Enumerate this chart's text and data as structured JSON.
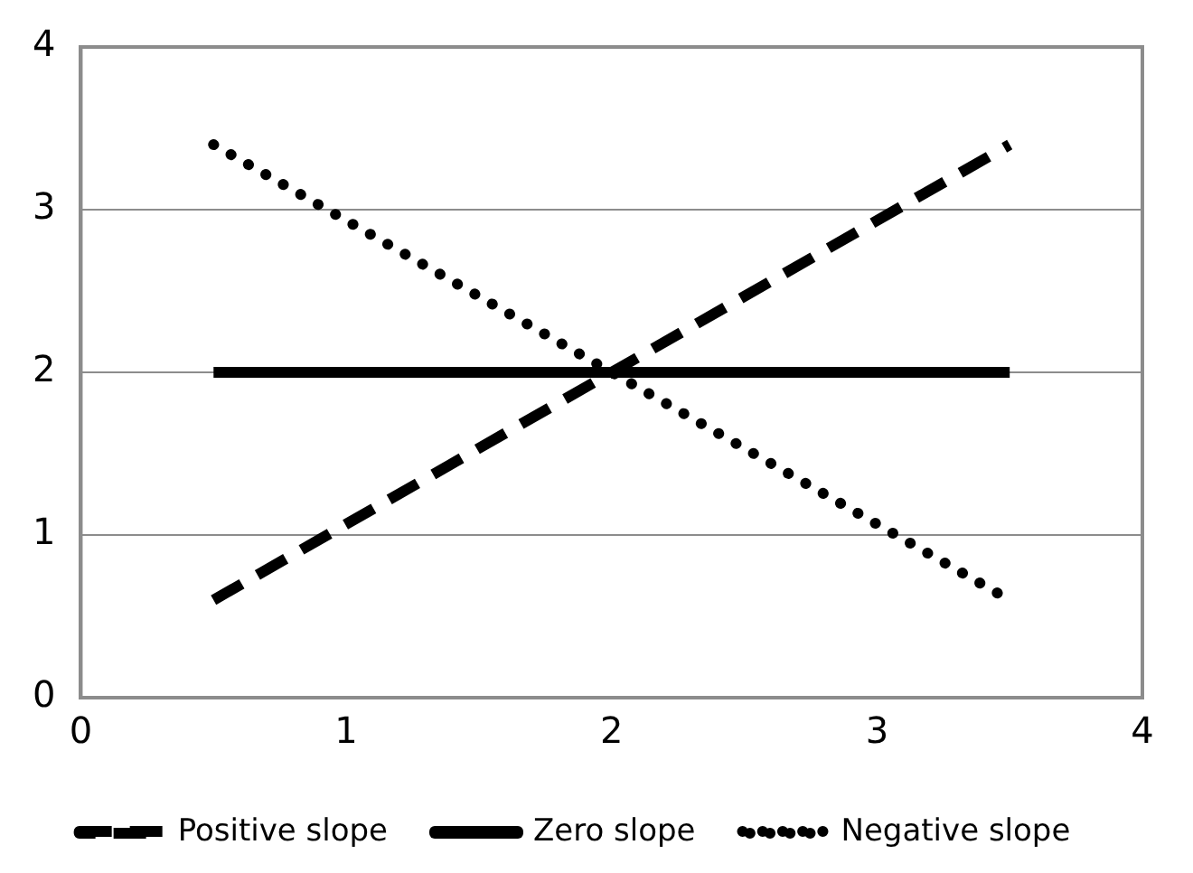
{
  "chart_data": {
    "type": "line",
    "x": [
      0.5,
      3.5
    ],
    "xlim": [
      0,
      4
    ],
    "xticks": [
      0,
      1,
      2,
      3,
      4
    ],
    "ylim": [
      0,
      4
    ],
    "yticks": [
      0,
      1,
      2,
      3,
      4
    ],
    "grid": "y",
    "legend": "bottom",
    "marker": "none",
    "series": [
      {
        "name": "Positive slope",
        "color": "#000000",
        "line_style": "dashed",
        "values": [
          0.6,
          3.4
        ]
      },
      {
        "name": "Zero slope",
        "color": "#000000",
        "line_style": "solid",
        "values": [
          2,
          2
        ]
      },
      {
        "name": "Negative slope",
        "color": "#000000",
        "line_style": "dotted",
        "values": [
          3.4,
          0.6
        ]
      }
    ]
  }
}
